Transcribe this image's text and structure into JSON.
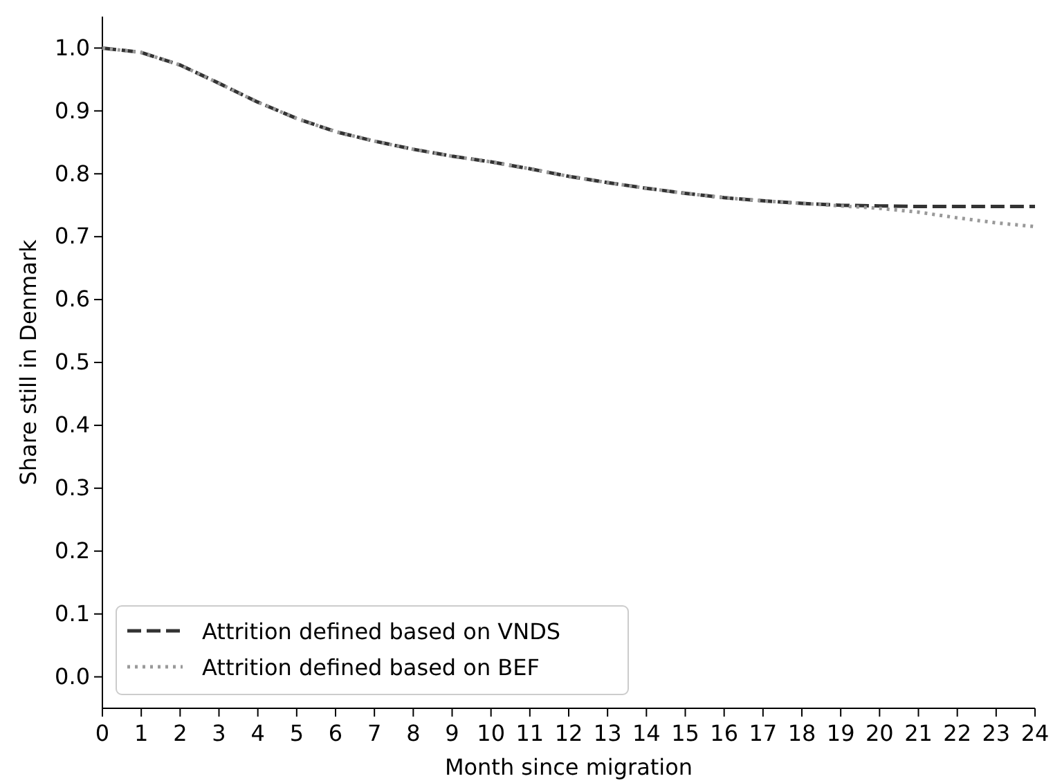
{
  "chart_data": {
    "type": "line",
    "xlabel": "Month since migration",
    "ylabel": "Share still in Denmark",
    "x": [
      0,
      1,
      2,
      3,
      4,
      5,
      6,
      7,
      8,
      9,
      10,
      11,
      12,
      13,
      14,
      15,
      16,
      17,
      18,
      19,
      20,
      21,
      22,
      23,
      24
    ],
    "series": [
      {
        "name": "Attrition defined based on VNDS",
        "color": "#333333",
        "line_style": "dashed",
        "values": [
          1.0,
          0.993,
          0.973,
          0.944,
          0.914,
          0.888,
          0.867,
          0.852,
          0.839,
          0.828,
          0.819,
          0.808,
          0.796,
          0.786,
          0.777,
          0.769,
          0.762,
          0.757,
          0.753,
          0.75,
          0.749,
          0.748,
          0.748,
          0.748,
          0.748
        ]
      },
      {
        "name": "Attrition defined based on BEF",
        "color": "#999999",
        "line_style": "dotted",
        "values": [
          1.0,
          0.993,
          0.973,
          0.944,
          0.914,
          0.888,
          0.867,
          0.852,
          0.839,
          0.828,
          0.819,
          0.808,
          0.796,
          0.786,
          0.777,
          0.769,
          0.762,
          0.757,
          0.753,
          0.749,
          0.745,
          0.739,
          0.73,
          0.722,
          0.716
        ]
      }
    ],
    "xlim": [
      0,
      24
    ],
    "xticks": [
      0,
      1,
      2,
      3,
      4,
      5,
      6,
      7,
      8,
      9,
      10,
      11,
      12,
      13,
      14,
      15,
      16,
      17,
      18,
      19,
      20,
      21,
      22,
      23,
      24
    ],
    "ylim": [
      -0.05,
      1.05
    ],
    "yticks": [
      {
        "value": 0,
        "label": "0.0"
      },
      0.1,
      0.2,
      0.3,
      0.4,
      0.5,
      0.6,
      0.7,
      0.8,
      0.9,
      {
        "value": 1,
        "label": "1.0"
      }
    ],
    "legend": "bottom left",
    "grid": false
  }
}
